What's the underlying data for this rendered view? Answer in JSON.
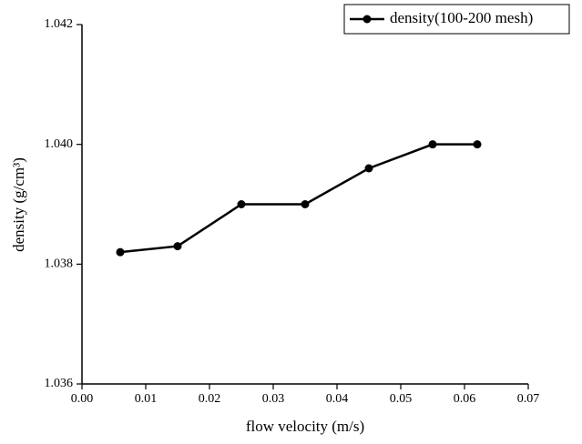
{
  "chart_data": {
    "type": "line",
    "xlabel": "flow velocity (m/s)",
    "ylabel": "density (g/cm³)",
    "x": [
      0.006,
      0.015,
      0.025,
      0.035,
      0.045,
      0.055,
      0.062
    ],
    "series": [
      {
        "name": "density(100-200 mesh)",
        "color": "#000000",
        "values": [
          1.0382,
          1.0383,
          1.039,
          1.039,
          1.0396,
          1.04,
          1.04
        ]
      }
    ],
    "xlim": [
      0,
      0.07
    ],
    "xticks": [
      {
        "value": 0,
        "label": "0.00"
      },
      0.01,
      0.02,
      0.03,
      0.04,
      0.05,
      0.06,
      0.07
    ],
    "ylim": [
      1.036,
      1.042
    ],
    "yticks": [
      1.036,
      1.038,
      {
        "value": 1.04,
        "label": "1.040"
      },
      1.042
    ],
    "grid": false,
    "legend": "top-right"
  }
}
